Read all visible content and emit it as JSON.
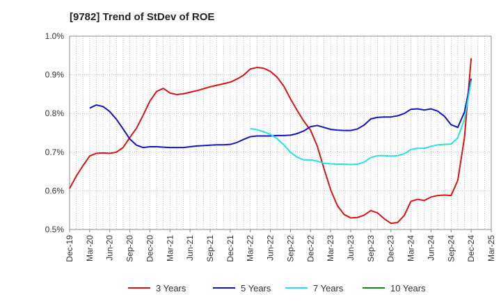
{
  "chart_data": {
    "type": "line",
    "title": "[9782]  Trend of StDev of ROE",
    "xlabel": "",
    "ylabel": "",
    "ylim": [
      0.5,
      1.0
    ],
    "yticks": [
      {
        "v": 1.0,
        "label": "1.0%"
      },
      {
        "v": 0.9,
        "label": "0.9%"
      },
      {
        "v": 0.8,
        "label": "0.8%"
      },
      {
        "v": 0.7,
        "label": "0.7%"
      },
      {
        "v": 0.6,
        "label": "0.6%"
      },
      {
        "v": 0.5,
        "label": "0.5%"
      }
    ],
    "xticks": [
      "Dec-19",
      "Mar-20",
      "Jun-20",
      "Sep-20",
      "Dec-20",
      "Mar-21",
      "Jun-21",
      "Sep-21",
      "Dec-21",
      "Mar-22",
      "Jun-22",
      "Sep-22",
      "Dec-22",
      "Mar-23",
      "Jun-23",
      "Sep-23",
      "Dec-23",
      "Mar-24",
      "Jun-24",
      "Sep-24",
      "Dec-24",
      "Mar-25"
    ],
    "grid": true,
    "legend_position": "bottom",
    "series": [
      {
        "name": "3 Years",
        "color": "#dd1111",
        "values": [
          [
            0,
            0.606
          ],
          [
            1,
            0.638
          ],
          [
            2,
            0.665
          ],
          [
            3,
            0.69
          ],
          [
            4,
            0.697
          ],
          [
            5,
            0.698
          ],
          [
            6,
            0.697
          ],
          [
            7,
            0.7
          ],
          [
            8,
            0.712
          ],
          [
            9,
            0.738
          ],
          [
            10,
            0.762
          ],
          [
            11,
            0.796
          ],
          [
            12,
            0.832
          ],
          [
            13,
            0.857
          ],
          [
            14,
            0.865
          ],
          [
            15,
            0.853
          ],
          [
            16,
            0.849
          ],
          [
            17,
            0.851
          ],
          [
            18,
            0.855
          ],
          [
            19,
            0.859
          ],
          [
            20,
            0.864
          ],
          [
            21,
            0.869
          ],
          [
            22,
            0.873
          ],
          [
            23,
            0.877
          ],
          [
            24,
            0.881
          ],
          [
            25,
            0.889
          ],
          [
            26,
            0.899
          ],
          [
            27,
            0.915
          ],
          [
            28,
            0.919
          ],
          [
            29,
            0.917
          ],
          [
            30,
            0.909
          ],
          [
            31,
            0.894
          ],
          [
            32,
            0.871
          ],
          [
            33,
            0.838
          ],
          [
            34,
            0.808
          ],
          [
            35,
            0.78
          ],
          [
            36,
            0.757
          ],
          [
            37,
            0.716
          ],
          [
            38,
            0.658
          ],
          [
            39,
            0.603
          ],
          [
            40,
            0.562
          ],
          [
            41,
            0.539
          ],
          [
            42,
            0.53
          ],
          [
            43,
            0.531
          ],
          [
            44,
            0.537
          ],
          [
            45,
            0.549
          ],
          [
            46,
            0.543
          ],
          [
            47,
            0.528
          ],
          [
            48,
            0.516
          ],
          [
            49,
            0.518
          ],
          [
            50,
            0.536
          ],
          [
            51,
            0.573
          ],
          [
            52,
            0.578
          ],
          [
            53,
            0.575
          ],
          [
            54,
            0.584
          ],
          [
            55,
            0.588
          ],
          [
            56,
            0.589
          ],
          [
            57,
            0.588
          ],
          [
            58,
            0.627
          ],
          [
            59,
            0.738
          ],
          [
            60,
            0.943
          ]
        ]
      },
      {
        "name": "5 Years",
        "color": "#1111cc",
        "values": [
          [
            3,
            0.814
          ],
          [
            4,
            0.822
          ],
          [
            5,
            0.818
          ],
          [
            6,
            0.805
          ],
          [
            7,
            0.785
          ],
          [
            8,
            0.76
          ],
          [
            9,
            0.734
          ],
          [
            10,
            0.718
          ],
          [
            11,
            0.712
          ],
          [
            12,
            0.714
          ],
          [
            13,
            0.714
          ],
          [
            14,
            0.713
          ],
          [
            15,
            0.712
          ],
          [
            16,
            0.712
          ],
          [
            17,
            0.712
          ],
          [
            18,
            0.714
          ],
          [
            19,
            0.716
          ],
          [
            20,
            0.717
          ],
          [
            21,
            0.718
          ],
          [
            22,
            0.719
          ],
          [
            23,
            0.719
          ],
          [
            24,
            0.72
          ],
          [
            25,
            0.725
          ],
          [
            26,
            0.733
          ],
          [
            27,
            0.74
          ],
          [
            28,
            0.742
          ],
          [
            29,
            0.742
          ],
          [
            30,
            0.742
          ],
          [
            31,
            0.743
          ],
          [
            32,
            0.743
          ],
          [
            33,
            0.744
          ],
          [
            34,
            0.748
          ],
          [
            35,
            0.755
          ],
          [
            36,
            0.766
          ],
          [
            37,
            0.769
          ],
          [
            38,
            0.764
          ],
          [
            39,
            0.759
          ],
          [
            40,
            0.757
          ],
          [
            41,
            0.756
          ],
          [
            42,
            0.756
          ],
          [
            43,
            0.76
          ],
          [
            44,
            0.77
          ],
          [
            45,
            0.786
          ],
          [
            46,
            0.79
          ],
          [
            47,
            0.791
          ],
          [
            48,
            0.791
          ],
          [
            49,
            0.794
          ],
          [
            50,
            0.8
          ],
          [
            51,
            0.811
          ],
          [
            52,
            0.812
          ],
          [
            53,
            0.809
          ],
          [
            54,
            0.812
          ],
          [
            55,
            0.806
          ],
          [
            56,
            0.793
          ],
          [
            57,
            0.771
          ],
          [
            58,
            0.764
          ],
          [
            59,
            0.804
          ],
          [
            60,
            0.89
          ]
        ]
      },
      {
        "name": "7 Years",
        "color": "#22e4e4",
        "values": [
          [
            27,
            0.761
          ],
          [
            28,
            0.758
          ],
          [
            29,
            0.753
          ],
          [
            30,
            0.746
          ],
          [
            31,
            0.735
          ],
          [
            32,
            0.719
          ],
          [
            33,
            0.7
          ],
          [
            34,
            0.687
          ],
          [
            35,
            0.68
          ],
          [
            36,
            0.68
          ],
          [
            37,
            0.677
          ],
          [
            38,
            0.671
          ],
          [
            39,
            0.67
          ],
          [
            40,
            0.669
          ],
          [
            41,
            0.669
          ],
          [
            42,
            0.668
          ],
          [
            43,
            0.669
          ],
          [
            44,
            0.674
          ],
          [
            45,
            0.686
          ],
          [
            46,
            0.691
          ],
          [
            47,
            0.691
          ],
          [
            48,
            0.69
          ],
          [
            49,
            0.691
          ],
          [
            50,
            0.696
          ],
          [
            51,
            0.707
          ],
          [
            52,
            0.71
          ],
          [
            53,
            0.71
          ],
          [
            54,
            0.715
          ],
          [
            55,
            0.719
          ],
          [
            56,
            0.72
          ],
          [
            57,
            0.721
          ],
          [
            58,
            0.737
          ],
          [
            59,
            0.785
          ],
          [
            60,
            0.884
          ]
        ]
      },
      {
        "name": "10 Years",
        "color": "#118811",
        "values": []
      }
    ]
  }
}
